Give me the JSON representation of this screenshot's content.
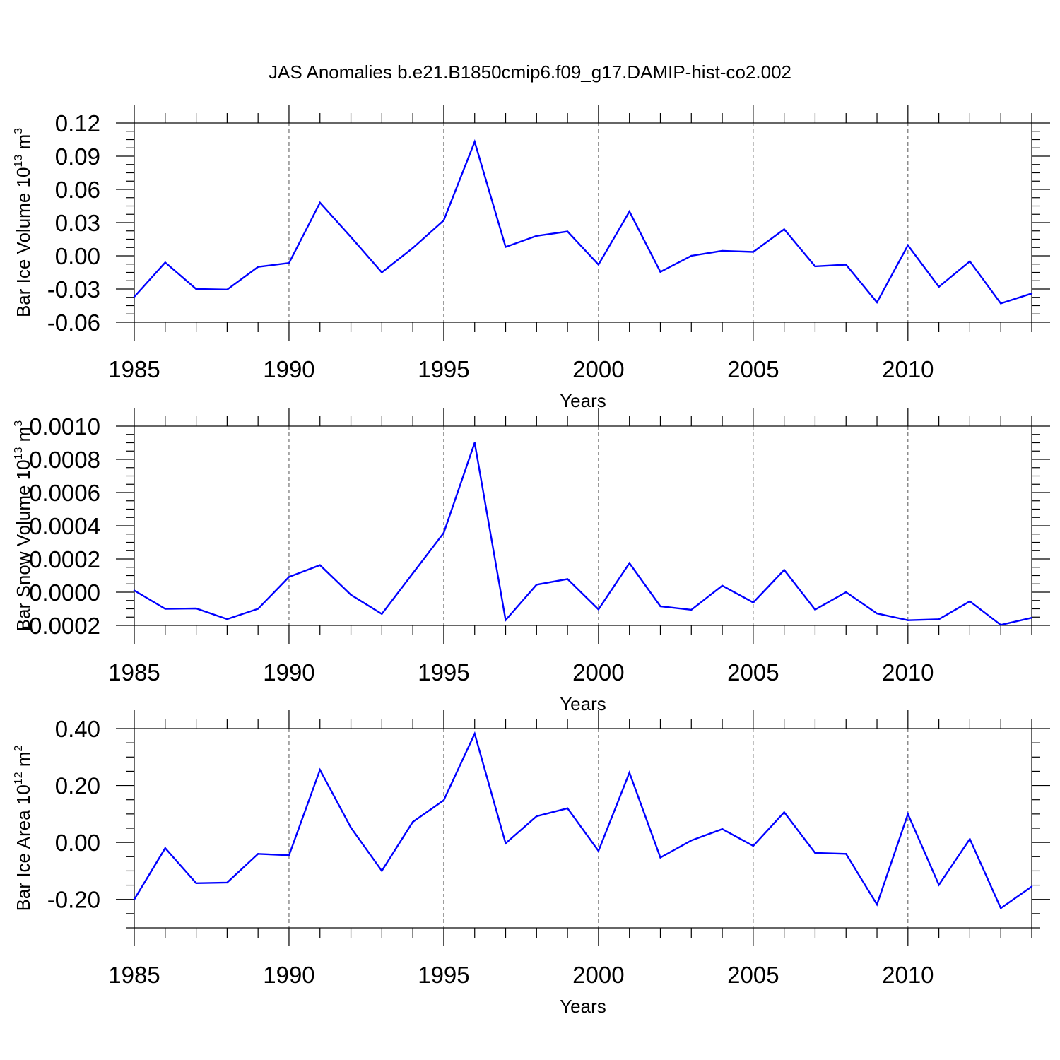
{
  "figure_title": "JAS Anomalies b.e21.B1850cmip6.f09_g17.DAMIP-hist-co2.002",
  "chart_data": [
    {
      "type": "line",
      "title": "JAS Anomalies b.e21.B1850cmip6.f09_g17.DAMIP-hist-co2.002",
      "xlabel": "Years",
      "ylabel": "Bar Ice Volume 10",
      "ylabel_exponent": "13",
      "ylabel_unit": "m",
      "ylabel_unit_exponent": "3",
      "xlim": [
        1985,
        2014
      ],
      "ylim": [
        -0.06,
        0.12
      ],
      "xticks": [
        1985,
        1990,
        1995,
        2000,
        2005,
        2010
      ],
      "yticks": [
        -0.06,
        -0.03,
        0.0,
        0.03,
        0.06,
        0.09,
        0.12
      ],
      "ytick_labels": [
        "-0.06",
        "-0.03",
        "0.00",
        "0.03",
        "0.06",
        "0.09",
        "0.12"
      ],
      "color": "#0000ff",
      "x": [
        1985,
        1986,
        1987,
        1988,
        1989,
        1990,
        1991,
        1992,
        1993,
        1994,
        1995,
        1996,
        1997,
        1998,
        1999,
        2000,
        2001,
        2002,
        2003,
        2004,
        2005,
        2006,
        2007,
        2008,
        2009,
        2010,
        2011,
        2012,
        2013,
        2014
      ],
      "values": [
        -0.037,
        -0.006,
        -0.03,
        -0.0305,
        -0.01,
        -0.0065,
        0.048,
        0.017,
        -0.015,
        0.007,
        0.032,
        0.103,
        0.008,
        0.018,
        0.022,
        -0.008,
        0.04,
        -0.0145,
        0.0,
        0.0045,
        0.0035,
        0.024,
        -0.0095,
        -0.008,
        -0.042,
        0.0095,
        -0.028,
        -0.005,
        -0.043,
        -0.034
      ]
    },
    {
      "type": "line",
      "xlabel": "Years",
      "ylabel": "Bar Snow Volume 10",
      "ylabel_exponent": "13",
      "ylabel_unit": "m",
      "ylabel_unit_exponent": "3",
      "xlim": [
        1985,
        2014
      ],
      "ylim": [
        -0.0002,
        0.001
      ],
      "xticks": [
        1985,
        1990,
        1995,
        2000,
        2005,
        2010
      ],
      "yticks": [
        -0.0002,
        0.0,
        0.0002,
        0.0004,
        0.0006,
        0.0008,
        0.001
      ],
      "ytick_labels": [
        "-0.0002",
        "0.0000",
        "0.0002",
        "0.0004",
        "0.0006",
        "0.0008",
        "0.0010"
      ],
      "color": "#0000ff",
      "x": [
        1985,
        1986,
        1987,
        1988,
        1989,
        1990,
        1991,
        1992,
        1993,
        1994,
        1995,
        1996,
        1997,
        1998,
        1999,
        2000,
        2001,
        2002,
        2003,
        2004,
        2005,
        2006,
        2007,
        2008,
        2009,
        2010,
        2011,
        2012,
        2013,
        2014
      ],
      "values": [
        1e-05,
        -0.0001,
        -9.8e-05,
        -0.000162,
        -0.0001,
        9.2e-05,
        0.000163,
        -1.6e-05,
        -0.000131,
        0.000113,
        0.000357,
        0.0009,
        -0.000168,
        4.5e-05,
        7.9e-05,
        -0.000104,
        0.000175,
        -8.5e-05,
        -0.000106,
        3.9e-05,
        -6.2e-05,
        0.000134,
        -0.000105,
        0.0,
        -0.000128,
        -0.000169,
        -0.000163,
        -5.5e-05,
        -0.000197,
        -0.000154
      ]
    },
    {
      "type": "line",
      "xlabel": "Years",
      "ylabel": "Bar Ice Area 10",
      "ylabel_exponent": "12",
      "ylabel_unit": "m",
      "ylabel_unit_exponent": "2",
      "xlim": [
        1985,
        2014
      ],
      "ylim": [
        -0.3,
        0.4
      ],
      "xticks": [
        1985,
        1990,
        1995,
        2000,
        2005,
        2010
      ],
      "yticks": [
        -0.2,
        0.0,
        0.2,
        0.4
      ],
      "ytick_labels": [
        "-0.20",
        "0.00",
        "0.20",
        "0.40"
      ],
      "color": "#0000ff",
      "x": [
        1985,
        1986,
        1987,
        1988,
        1989,
        1990,
        1991,
        1992,
        1993,
        1994,
        1995,
        1996,
        1997,
        1998,
        1999,
        2000,
        2001,
        2002,
        2003,
        2004,
        2005,
        2006,
        2007,
        2008,
        2009,
        2010,
        2011,
        2012,
        2013,
        2014
      ],
      "values": [
        -0.2,
        -0.02,
        -0.143,
        -0.141,
        -0.04,
        -0.045,
        0.255,
        0.052,
        -0.1,
        0.072,
        0.148,
        0.382,
        -0.003,
        0.092,
        0.12,
        -0.03,
        0.245,
        -0.053,
        0.007,
        0.047,
        -0.012,
        0.106,
        -0.037,
        -0.04,
        -0.218,
        0.1,
        -0.149,
        0.012,
        -0.231,
        -0.155
      ]
    }
  ]
}
